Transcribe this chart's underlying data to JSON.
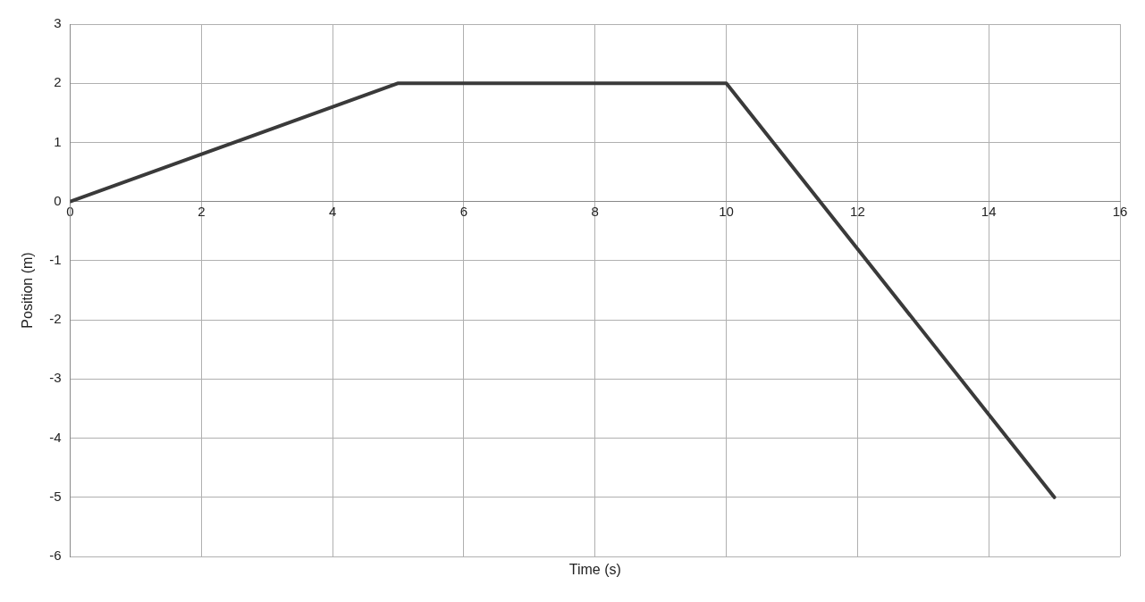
{
  "chart_data": {
    "type": "line",
    "xlabel": "Time (s)",
    "ylabel": "Position (m)",
    "x": [
      0,
      5,
      10,
      15
    ],
    "series": [
      {
        "color": "#3a3a3a",
        "values": [
          0,
          2,
          2,
          -5
        ]
      }
    ],
    "xlim": [
      0,
      16
    ],
    "xticks": [
      0,
      2,
      4,
      6,
      8,
      10,
      12,
      14,
      16
    ],
    "ylim": [
      -6,
      3
    ],
    "yticks": [
      -6,
      -5,
      -4,
      -3,
      -2,
      -1,
      0,
      1,
      2,
      3
    ],
    "grid": true,
    "legend": false,
    "marker": "none",
    "line_style": "solid"
  }
}
